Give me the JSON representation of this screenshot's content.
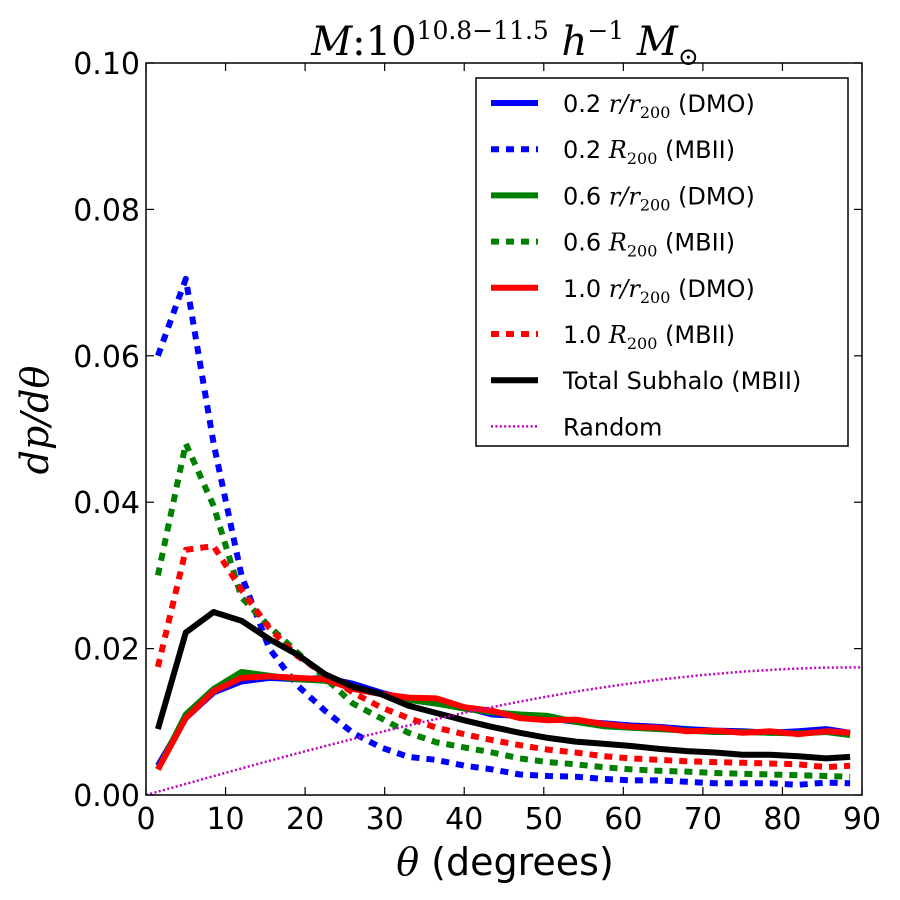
{
  "chart_data": {
    "type": "line",
    "title": {
      "prefix": "M",
      "colon": ":",
      "base": "10",
      "exponent": "10.8−11.5",
      "h": "h",
      "h_exp": "−1",
      "m": "M",
      "m_sub": "⊙"
    },
    "xlabel": {
      "symbol": "θ",
      "text": " (degrees)"
    },
    "ylabel": "dp/dθ",
    "xlim": [
      0,
      90
    ],
    "ylim": [
      0,
      0.1
    ],
    "xticks": [
      0,
      10,
      20,
      30,
      40,
      50,
      60,
      70,
      80,
      90
    ],
    "yticks": [
      0,
      0.02,
      0.04,
      0.06,
      0.08,
      0.1
    ],
    "xtick_labels": [
      "0",
      "10",
      "20",
      "30",
      "40",
      "50",
      "60",
      "70",
      "80",
      "90"
    ],
    "ytick_labels": [
      "0.00",
      "0.02",
      "0.04",
      "0.06",
      "0.08",
      "0.10"
    ],
    "legend_position": "top-right",
    "x": [
      1.5,
      5,
      8.5,
      12,
      15.5,
      19,
      22.5,
      26,
      29.5,
      33,
      36.5,
      40,
      43.5,
      47,
      50.5,
      54,
      57.5,
      61,
      64.5,
      68,
      71.5,
      75,
      78.5,
      82,
      85.5,
      88.5
    ],
    "series": [
      {
        "name": "dmo-0.2",
        "label_num": "0.2",
        "label_math": "r/r",
        "label_sub": "200",
        "label_tail": " (DMO)",
        "color": "#0000ff",
        "style": "solid",
        "values": [
          0.004,
          0.0105,
          0.014,
          0.0155,
          0.016,
          0.0158,
          0.016,
          0.0152,
          0.014,
          0.013,
          0.0125,
          0.012,
          0.011,
          0.0108,
          0.0105,
          0.01,
          0.0098,
          0.0095,
          0.0093,
          0.009,
          0.0088,
          0.0087,
          0.0085,
          0.0087,
          0.009,
          0.0085
        ]
      },
      {
        "name": "mbii-0.2",
        "label_num": "0.2",
        "label_math": "R",
        "label_sub": "200",
        "label_tail": " (MBII)",
        "color": "#0000ff",
        "style": "dotted",
        "values": [
          0.06,
          0.0705,
          0.048,
          0.03,
          0.02,
          0.015,
          0.0115,
          0.0085,
          0.0065,
          0.0052,
          0.0048,
          0.004,
          0.0035,
          0.0028,
          0.0026,
          0.0025,
          0.0022,
          0.002,
          0.002,
          0.0018,
          0.0016,
          0.0016,
          0.0016,
          0.0014,
          0.0017,
          0.0016
        ]
      },
      {
        "name": "dmo-0.6",
        "label_num": "0.6",
        "label_math": "r/r",
        "label_sub": "200",
        "label_tail": " (DMO)",
        "color": "#008000",
        "style": "solid",
        "values": [
          0.0035,
          0.011,
          0.0145,
          0.0168,
          0.0163,
          0.0158,
          0.0156,
          0.0148,
          0.0138,
          0.013,
          0.0125,
          0.0118,
          0.0113,
          0.011,
          0.0108,
          0.01,
          0.0094,
          0.0092,
          0.009,
          0.0088,
          0.0086,
          0.0086,
          0.0085,
          0.0084,
          0.0086,
          0.0082
        ]
      },
      {
        "name": "mbii-0.6",
        "label_num": "0.6",
        "label_math": "R",
        "label_sub": "200",
        "label_tail": " (MBII)",
        "color": "#008000",
        "style": "dotted",
        "values": [
          0.03,
          0.048,
          0.0395,
          0.027,
          0.023,
          0.0195,
          0.016,
          0.0125,
          0.0105,
          0.0085,
          0.0072,
          0.0065,
          0.0058,
          0.005,
          0.0045,
          0.0042,
          0.0038,
          0.0035,
          0.0033,
          0.0032,
          0.003,
          0.0029,
          0.0028,
          0.0027,
          0.0026,
          0.0025
        ]
      },
      {
        "name": "dmo-1.0",
        "label_num": "1.0",
        "label_math": "r/r",
        "label_sub": "200",
        "label_tail": " (DMO)",
        "color": "#ff0000",
        "style": "solid",
        "values": [
          0.0035,
          0.0105,
          0.0142,
          0.016,
          0.0162,
          0.016,
          0.0158,
          0.0145,
          0.0138,
          0.0133,
          0.0132,
          0.012,
          0.0115,
          0.0105,
          0.0102,
          0.0103,
          0.0097,
          0.0093,
          0.0092,
          0.0087,
          0.0088,
          0.0085,
          0.0087,
          0.0083,
          0.0087,
          0.0085
        ]
      },
      {
        "name": "mbii-1.0",
        "label_num": "1.0",
        "label_math": "R",
        "label_sub": "200",
        "label_tail": " (MBII)",
        "color": "#ff0000",
        "style": "dotted",
        "values": [
          0.0175,
          0.0335,
          0.034,
          0.028,
          0.0228,
          0.019,
          0.0165,
          0.014,
          0.012,
          0.0105,
          0.0092,
          0.0083,
          0.0075,
          0.0068,
          0.0062,
          0.0058,
          0.0053,
          0.005,
          0.0048,
          0.0046,
          0.0045,
          0.0044,
          0.0043,
          0.0042,
          0.0038,
          0.004
        ]
      },
      {
        "name": "total-subhalo",
        "label_text": "Total Subhalo (MBII)",
        "color": "#000000",
        "style": "solid",
        "values": [
          0.009,
          0.0222,
          0.025,
          0.0238,
          0.0213,
          0.0192,
          0.0165,
          0.0148,
          0.0138,
          0.0122,
          0.0112,
          0.0102,
          0.0093,
          0.0085,
          0.0078,
          0.0073,
          0.007,
          0.0067,
          0.0063,
          0.006,
          0.0058,
          0.0055,
          0.0055,
          0.0053,
          0.005,
          0.0052
        ]
      },
      {
        "name": "random",
        "label_text": "Random",
        "color": "#bf00bf",
        "style": "fine-dotted",
        "function": "sin(theta)*pi/180",
        "x": [
          0,
          5,
          10,
          15,
          20,
          25,
          30,
          35,
          40,
          45,
          50,
          55,
          60,
          65,
          70,
          75,
          80,
          85,
          90
        ],
        "values": [
          0,
          0.00152,
          0.00303,
          0.00452,
          0.00597,
          0.00738,
          0.00873,
          0.01001,
          0.01122,
          0.01234,
          0.01337,
          0.0143,
          0.01511,
          0.01582,
          0.0164,
          0.01686,
          0.01719,
          0.01739,
          0.01745
        ]
      }
    ]
  }
}
